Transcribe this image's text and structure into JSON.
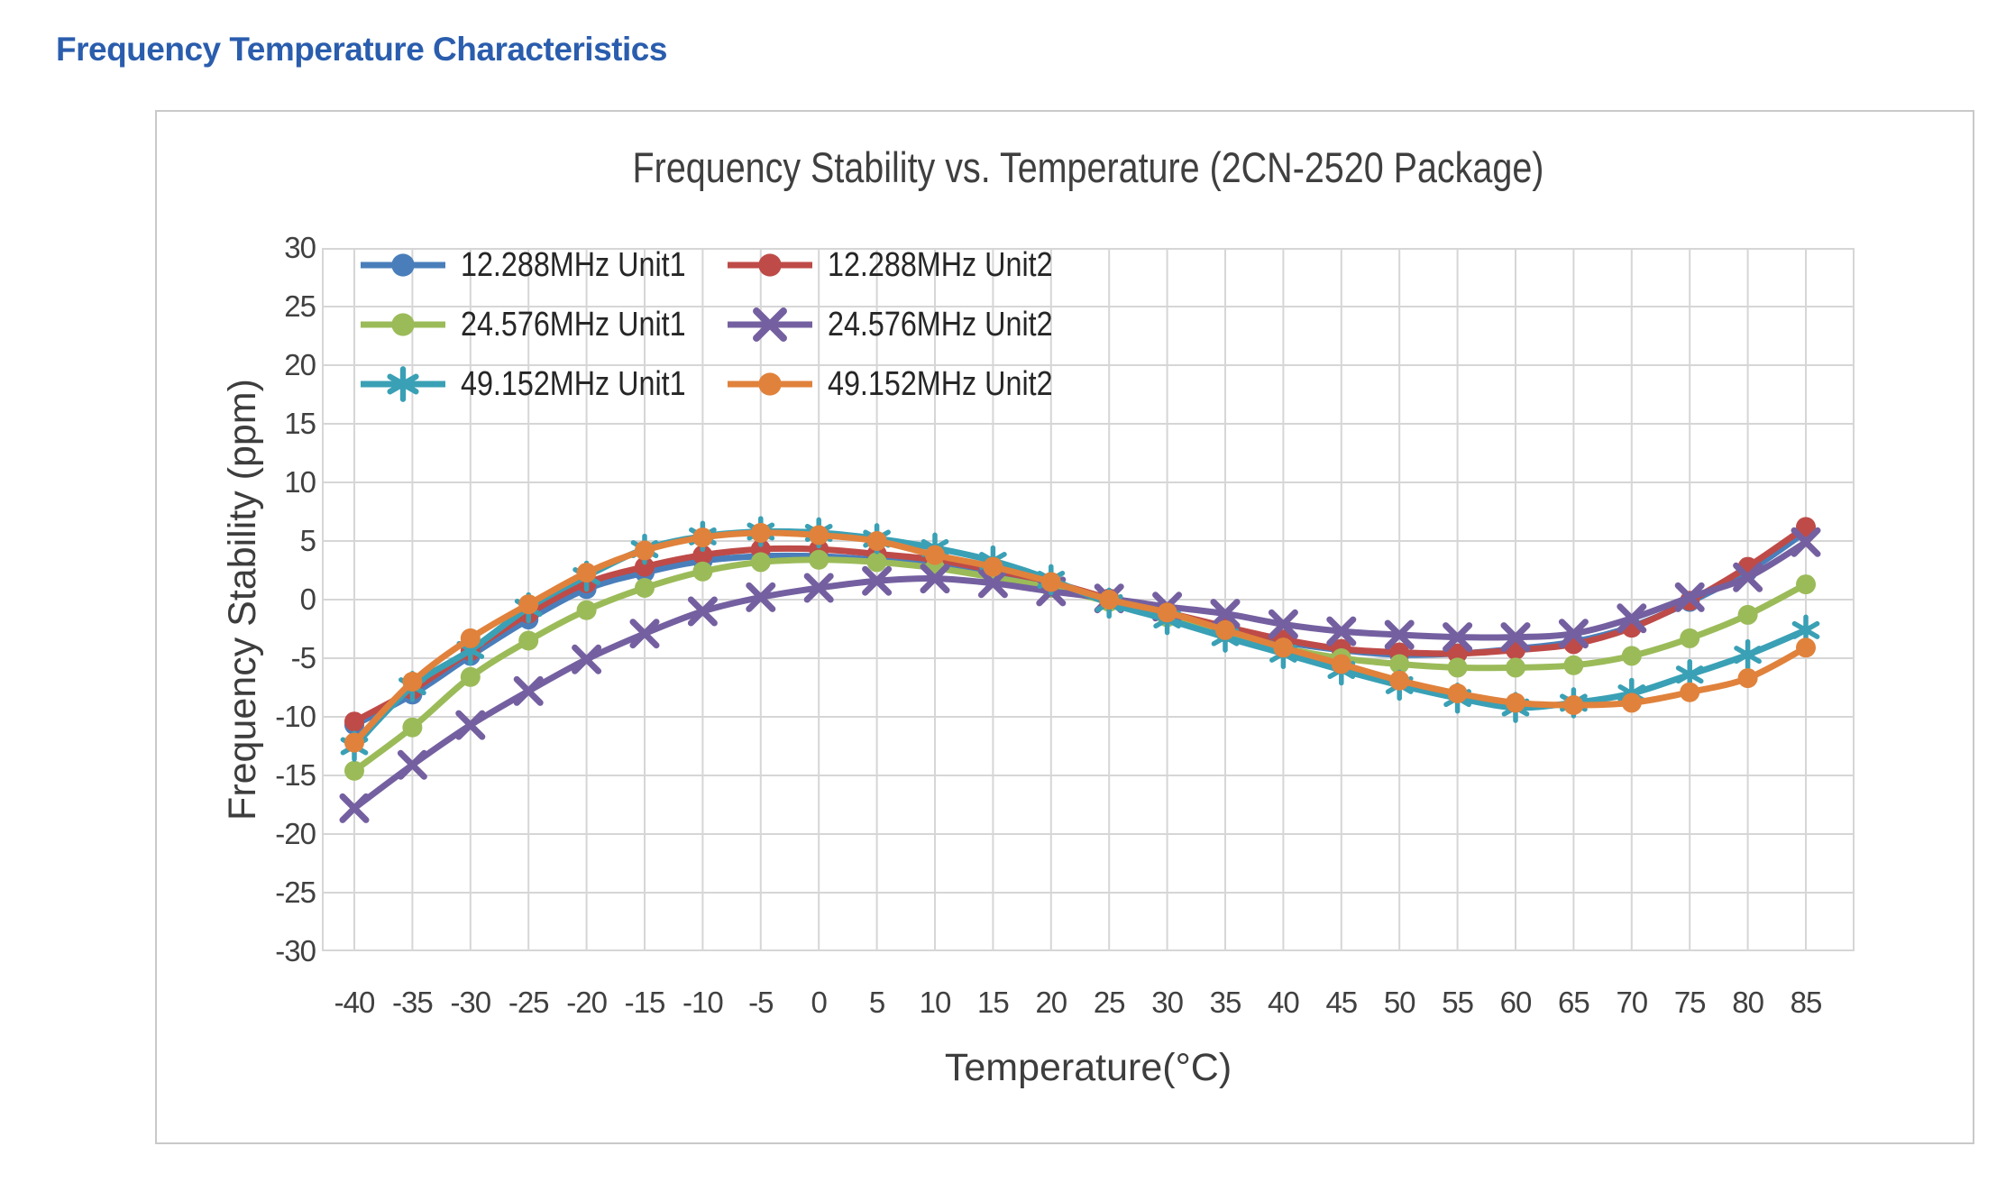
{
  "page": {
    "heading": "Frequency Temperature Characteristics",
    "heading_color": "#2A5DAD",
    "background": "#FFFFFF",
    "card_border_color": "#C9C9C9"
  },
  "chart_data": {
    "type": "line",
    "title": "Frequency Stability vs. Temperature (2CN-2520 Package)",
    "xlabel": "Temperature(°C)",
    "ylabel": "Frequency Stability (ppm)",
    "ylim": [
      -30,
      30
    ],
    "y_step": 5,
    "y_ticks": [
      30,
      25,
      20,
      15,
      10,
      5,
      0,
      -5,
      -10,
      -15,
      -20,
      -25,
      -30
    ],
    "grid": true,
    "grid_color": "#D6D6D6",
    "legend_position": "top-left-inside",
    "categories": [
      "-40",
      "-35",
      "-30",
      "-25",
      "-20",
      "-15",
      "-10",
      "-5",
      "0",
      "5",
      "10",
      "15",
      "20",
      "25",
      "30",
      "35",
      "40",
      "45",
      "50",
      "55",
      "60",
      "65",
      "70",
      "75",
      "80",
      "85"
    ],
    "series": [
      {
        "name": "12.288MHz Unit1",
        "color": "#4A7EBB",
        "marker": "circle",
        "values": [
          -10.7,
          -8.1,
          -4.8,
          -1.7,
          0.9,
          2.3,
          3.3,
          3.7,
          3.7,
          3.4,
          3.1,
          2.2,
          1.3,
          0.0,
          -1.3,
          -2.5,
          -3.6,
          -4.3,
          -4.7,
          -4.6,
          -4.2,
          -3.6,
          -2.3,
          -0.2,
          2.4,
          5.8
        ]
      },
      {
        "name": "12.288MHz Unit2",
        "color": "#BE4B48",
        "marker": "circle",
        "values": [
          -10.4,
          -7.7,
          -4.4,
          -1.2,
          1.4,
          2.8,
          3.8,
          4.3,
          4.3,
          3.9,
          3.4,
          2.5,
          1.5,
          0.1,
          -1.1,
          -2.3,
          -3.4,
          -4.2,
          -4.5,
          -4.6,
          -4.3,
          -3.8,
          -2.4,
          -0.1,
          2.8,
          6.2
        ]
      },
      {
        "name": "24.576MHz Unit1",
        "color": "#9BBB59",
        "marker": "circle",
        "values": [
          -14.6,
          -10.9,
          -6.6,
          -3.5,
          -0.9,
          1.0,
          2.4,
          3.2,
          3.4,
          3.2,
          2.7,
          1.9,
          1.0,
          -0.2,
          -1.5,
          -2.8,
          -4.1,
          -5.0,
          -5.5,
          -5.8,
          -5.8,
          -5.6,
          -4.8,
          -3.3,
          -1.3,
          1.3
        ]
      },
      {
        "name": "24.576MHz Unit2",
        "color": "#7460A0",
        "marker": "x",
        "values": [
          -17.8,
          -14.1,
          -10.7,
          -7.8,
          -5.1,
          -2.9,
          -1.0,
          0.2,
          1.0,
          1.6,
          1.8,
          1.4,
          0.7,
          0.1,
          -0.6,
          -1.2,
          -2.1,
          -2.7,
          -3.0,
          -3.2,
          -3.2,
          -2.9,
          -1.6,
          0.2,
          1.9,
          4.9
        ]
      },
      {
        "name": "49.152MHz Unit1",
        "color": "#3AA0B5",
        "marker": "asterisk",
        "values": [
          -12.5,
          -7.4,
          -4.3,
          -0.7,
          2.0,
          4.3,
          5.4,
          5.8,
          5.7,
          5.2,
          4.4,
          3.3,
          1.7,
          -0.3,
          -1.7,
          -3.2,
          -4.6,
          -6.0,
          -7.3,
          -8.4,
          -9.2,
          -8.8,
          -8.0,
          -6.4,
          -4.7,
          -2.6
        ]
      },
      {
        "name": "49.152MHz Unit2",
        "color": "#E0823C",
        "marker": "circle",
        "values": [
          -12.2,
          -7.0,
          -3.3,
          -0.4,
          2.3,
          4.2,
          5.3,
          5.7,
          5.5,
          5.0,
          3.8,
          2.8,
          1.5,
          0.0,
          -1.1,
          -2.6,
          -4.1,
          -5.5,
          -6.9,
          -8.0,
          -8.8,
          -9.0,
          -8.8,
          -7.9,
          -6.7,
          -4.1
        ]
      }
    ]
  }
}
